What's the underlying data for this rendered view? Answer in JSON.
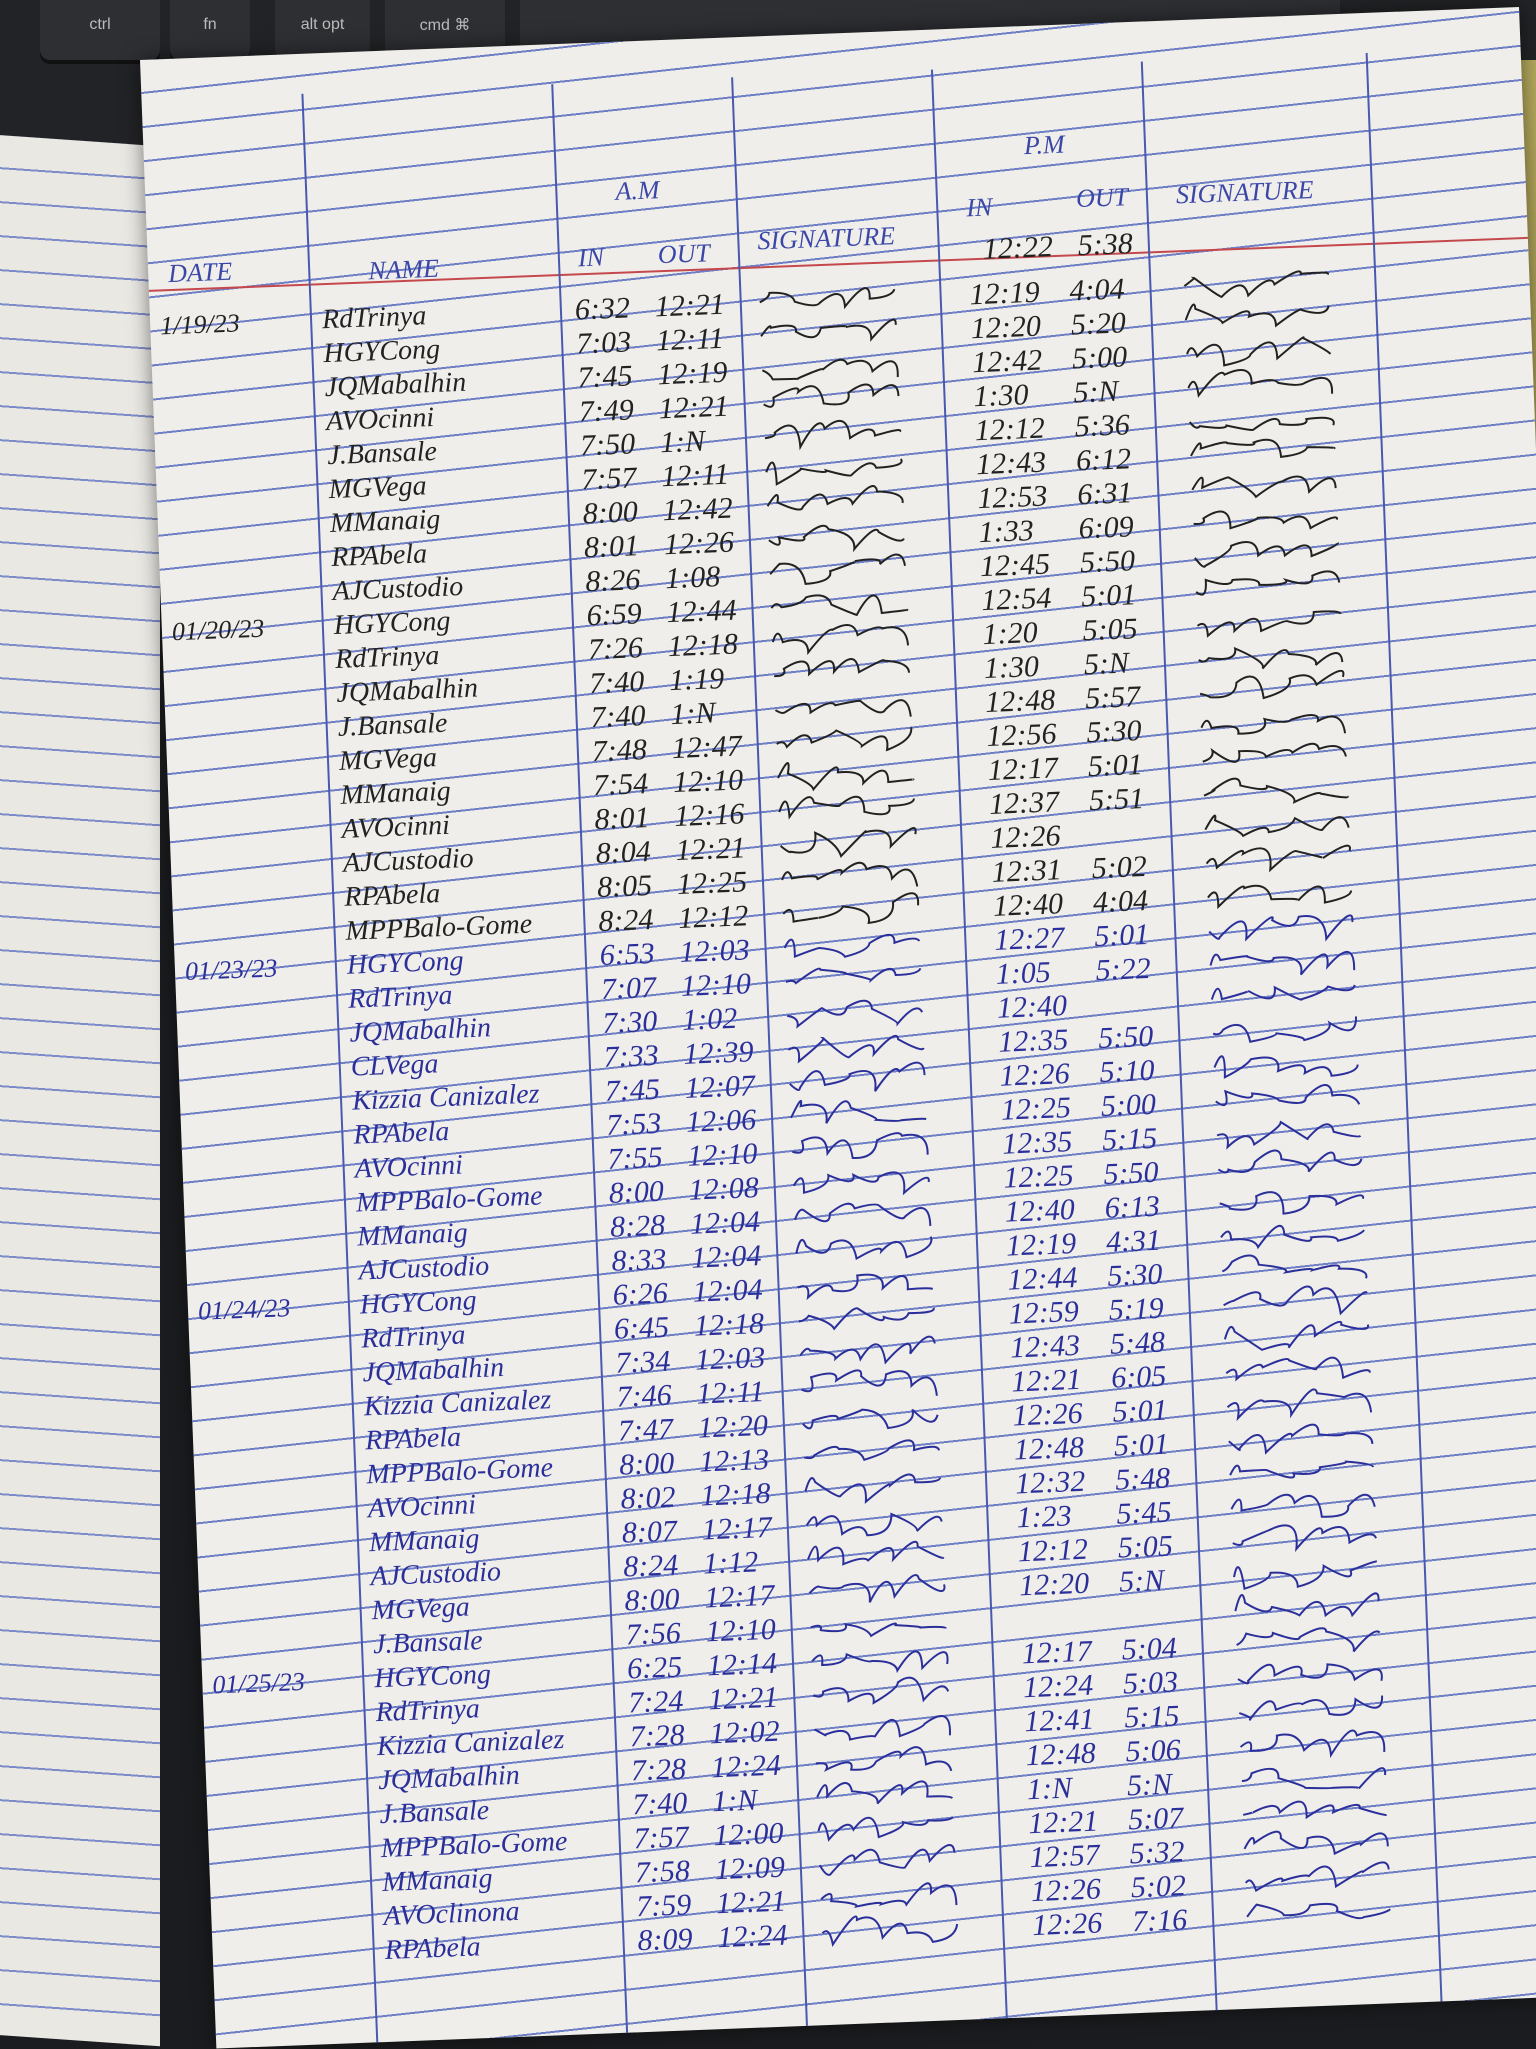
{
  "keyboard": {
    "keys": [
      "ctrl",
      "fn",
      "alt opt",
      "cmd ⌘"
    ]
  },
  "header": {
    "date": "DATE",
    "name": "NAME",
    "am": "A.M",
    "am_in": "IN",
    "am_out": "OUT",
    "signature_am": "SIGNATURE",
    "pm": "P.M",
    "pm_in": "IN",
    "pm_out": "OUT",
    "signature_pm": "SIGNATURE"
  },
  "colors": {
    "paper": "#efeeea",
    "rule_line": "#6f7fc6",
    "margin_line": "#c5484d",
    "ink_blue": "#2b2f9a",
    "ink_black": "#222222"
  },
  "pm_header_row": {
    "pm_in": "12:22",
    "pm_out": "5:38"
  },
  "days": [
    {
      "date": "1/19/23",
      "ink": "black",
      "rows": [
        {
          "name": "RdTrinya",
          "am_in": "6:32",
          "am_out": "12:21",
          "pm_in": "12:19",
          "pm_out": "4:04"
        },
        {
          "name": "HGYCong",
          "am_in": "7:03",
          "am_out": "12:11",
          "pm_in": "12:20",
          "pm_out": "5:20"
        },
        {
          "name": "JQMabalhin",
          "am_in": "7:45",
          "am_out": "12:19",
          "pm_in": "12:42",
          "pm_out": "5:00"
        },
        {
          "name": "AVOcinni",
          "am_in": "7:49",
          "am_out": "12:21",
          "pm_in": "1:30",
          "pm_out": "5:N"
        },
        {
          "name": "J.Bansale",
          "am_in": "7:50",
          "am_out": "1:N",
          "pm_in": "12:12",
          "pm_out": "5:36"
        },
        {
          "name": "MGVega",
          "am_in": "7:57",
          "am_out": "12:11",
          "pm_in": "12:43",
          "pm_out": "6:12"
        },
        {
          "name": "MManaig",
          "am_in": "8:00",
          "am_out": "12:42",
          "pm_in": "12:53",
          "pm_out": "6:31"
        },
        {
          "name": "RPAbela",
          "am_in": "8:01",
          "am_out": "12:26",
          "pm_in": "1:33",
          "pm_out": "6:09"
        },
        {
          "name": "AJCustodio",
          "am_in": "8:26",
          "am_out": "1:08",
          "pm_in": "12:45",
          "pm_out": "5:50"
        }
      ]
    },
    {
      "date": "01/20/23",
      "ink": "black",
      "rows": [
        {
          "name": "HGYCong",
          "am_in": "6:59",
          "am_out": "12:44",
          "pm_in": "12:54",
          "pm_out": "5:01"
        },
        {
          "name": "RdTrinya",
          "am_in": "7:26",
          "am_out": "12:18",
          "pm_in": "1:20",
          "pm_out": "5:05"
        },
        {
          "name": "JQMabalhin",
          "am_in": "7:40",
          "am_out": "1:19",
          "pm_in": "1:30",
          "pm_out": "5:N"
        },
        {
          "name": "J.Bansale",
          "am_in": "7:40",
          "am_out": "1:N",
          "pm_in": "12:48",
          "pm_out": "5:57"
        },
        {
          "name": "MGVega",
          "am_in": "7:48",
          "am_out": "12:47",
          "pm_in": "12:56",
          "pm_out": "5:30"
        },
        {
          "name": "MManaig",
          "am_in": "7:54",
          "am_out": "12:10",
          "pm_in": "12:17",
          "pm_out": "5:01"
        },
        {
          "name": "AVOcinni",
          "am_in": "8:01",
          "am_out": "12:16",
          "pm_in": "12:37",
          "pm_out": "5:51"
        },
        {
          "name": "AJCustodio",
          "am_in": "8:04",
          "am_out": "12:21",
          "pm_in": "12:26",
          "pm_out": ""
        },
        {
          "name": "RPAbela",
          "am_in": "8:05",
          "am_out": "12:25",
          "pm_in": "12:31",
          "pm_out": "5:02"
        },
        {
          "name": "MPPBalo-Gome",
          "am_in": "8:24",
          "am_out": "12:12",
          "pm_in": "12:40",
          "pm_out": "4:04"
        }
      ]
    },
    {
      "date": "01/23/23",
      "ink": "blue",
      "rows": [
        {
          "name": "HGYCong",
          "am_in": "6:53",
          "am_out": "12:03",
          "pm_in": "12:27",
          "pm_out": "5:01"
        },
        {
          "name": "RdTrinya",
          "am_in": "7:07",
          "am_out": "12:10",
          "pm_in": "1:05",
          "pm_out": "5:22"
        },
        {
          "name": "JQMabalhin",
          "am_in": "7:30",
          "am_out": "1:02",
          "pm_in": "12:40",
          "pm_out": ""
        },
        {
          "name": "CLVega",
          "am_in": "7:33",
          "am_out": "12:39",
          "pm_in": "12:35",
          "pm_out": "5:50"
        },
        {
          "name": "Kizzia Canizalez",
          "am_in": "7:45",
          "am_out": "12:07",
          "pm_in": "12:26",
          "pm_out": "5:10"
        },
        {
          "name": "RPAbela",
          "am_in": "7:53",
          "am_out": "12:06",
          "pm_in": "12:25",
          "pm_out": "5:00"
        },
        {
          "name": "AVOcinni",
          "am_in": "7:55",
          "am_out": "12:10",
          "pm_in": "12:35",
          "pm_out": "5:15"
        },
        {
          "name": "MPPBalo-Gome",
          "am_in": "8:00",
          "am_out": "12:08",
          "pm_in": "12:25",
          "pm_out": "5:50"
        },
        {
          "name": "MManaig",
          "am_in": "8:28",
          "am_out": "12:04",
          "pm_in": "12:40",
          "pm_out": "6:13"
        },
        {
          "name": "AJCustodio",
          "am_in": "8:33",
          "am_out": "12:04",
          "pm_in": "12:19",
          "pm_out": "4:31"
        }
      ]
    },
    {
      "date": "01/24/23",
      "ink": "blue",
      "rows": [
        {
          "name": "HGYCong",
          "am_in": "6:26",
          "am_out": "12:04",
          "pm_in": "12:44",
          "pm_out": "5:30"
        },
        {
          "name": "RdTrinya",
          "am_in": "6:45",
          "am_out": "12:18",
          "pm_in": "12:59",
          "pm_out": "5:19"
        },
        {
          "name": "JQMabalhin",
          "am_in": "7:34",
          "am_out": "12:03",
          "pm_in": "12:43",
          "pm_out": "5:48"
        },
        {
          "name": "Kizzia Canizalez",
          "am_in": "7:46",
          "am_out": "12:11",
          "pm_in": "12:21",
          "pm_out": "6:05"
        },
        {
          "name": "RPAbela",
          "am_in": "7:47",
          "am_out": "12:20",
          "pm_in": "12:26",
          "pm_out": "5:01"
        },
        {
          "name": "MPPBalo-Gome",
          "am_in": "8:00",
          "am_out": "12:13",
          "pm_in": "12:48",
          "pm_out": "5:01"
        },
        {
          "name": "AVOcinni",
          "am_in": "8:02",
          "am_out": "12:18",
          "pm_in": "12:32",
          "pm_out": "5:48"
        },
        {
          "name": "MManaig",
          "am_in": "8:07",
          "am_out": "12:17",
          "pm_in": "1:23",
          "pm_out": "5:45"
        },
        {
          "name": "AJCustodio",
          "am_in": "8:24",
          "am_out": "1:12",
          "pm_in": "12:12",
          "pm_out": "5:05"
        },
        {
          "name": "MGVega",
          "am_in": "8:00",
          "am_out": "12:17",
          "pm_in": "12:20",
          "pm_out": "5:N"
        },
        {
          "name": "J.Bansale",
          "am_in": "7:56",
          "am_out": "12:10",
          "pm_in": "",
          "pm_out": ""
        }
      ]
    },
    {
      "date": "01/25/23",
      "ink": "blue",
      "rows": [
        {
          "name": "HGYCong",
          "am_in": "6:25",
          "am_out": "12:14",
          "pm_in": "12:17",
          "pm_out": "5:04"
        },
        {
          "name": "RdTrinya",
          "am_in": "7:24",
          "am_out": "12:21",
          "pm_in": "12:24",
          "pm_out": "5:03"
        },
        {
          "name": "Kizzia Canizalez",
          "am_in": "7:28",
          "am_out": "12:02",
          "pm_in": "12:41",
          "pm_out": "5:15"
        },
        {
          "name": "JQMabalhin",
          "am_in": "7:28",
          "am_out": "12:24",
          "pm_in": "12:48",
          "pm_out": "5:06"
        },
        {
          "name": "J.Bansale",
          "am_in": "7:40",
          "am_out": "1:N",
          "pm_in": "1:N",
          "pm_out": "5:N"
        },
        {
          "name": "MPPBalo-Gome",
          "am_in": "7:57",
          "am_out": "12:00",
          "pm_in": "12:21",
          "pm_out": "5:07"
        },
        {
          "name": "MManaig",
          "am_in": "7:58",
          "am_out": "12:09",
          "pm_in": "12:57",
          "pm_out": "5:32"
        },
        {
          "name": "AVOclinona",
          "am_in": "7:59",
          "am_out": "12:21",
          "pm_in": "12:26",
          "pm_out": "5:02"
        },
        {
          "name": "RPAbela",
          "am_in": "8:09",
          "am_out": "12:24",
          "pm_in": "12:26",
          "pm_out": "7:16"
        }
      ]
    }
  ]
}
